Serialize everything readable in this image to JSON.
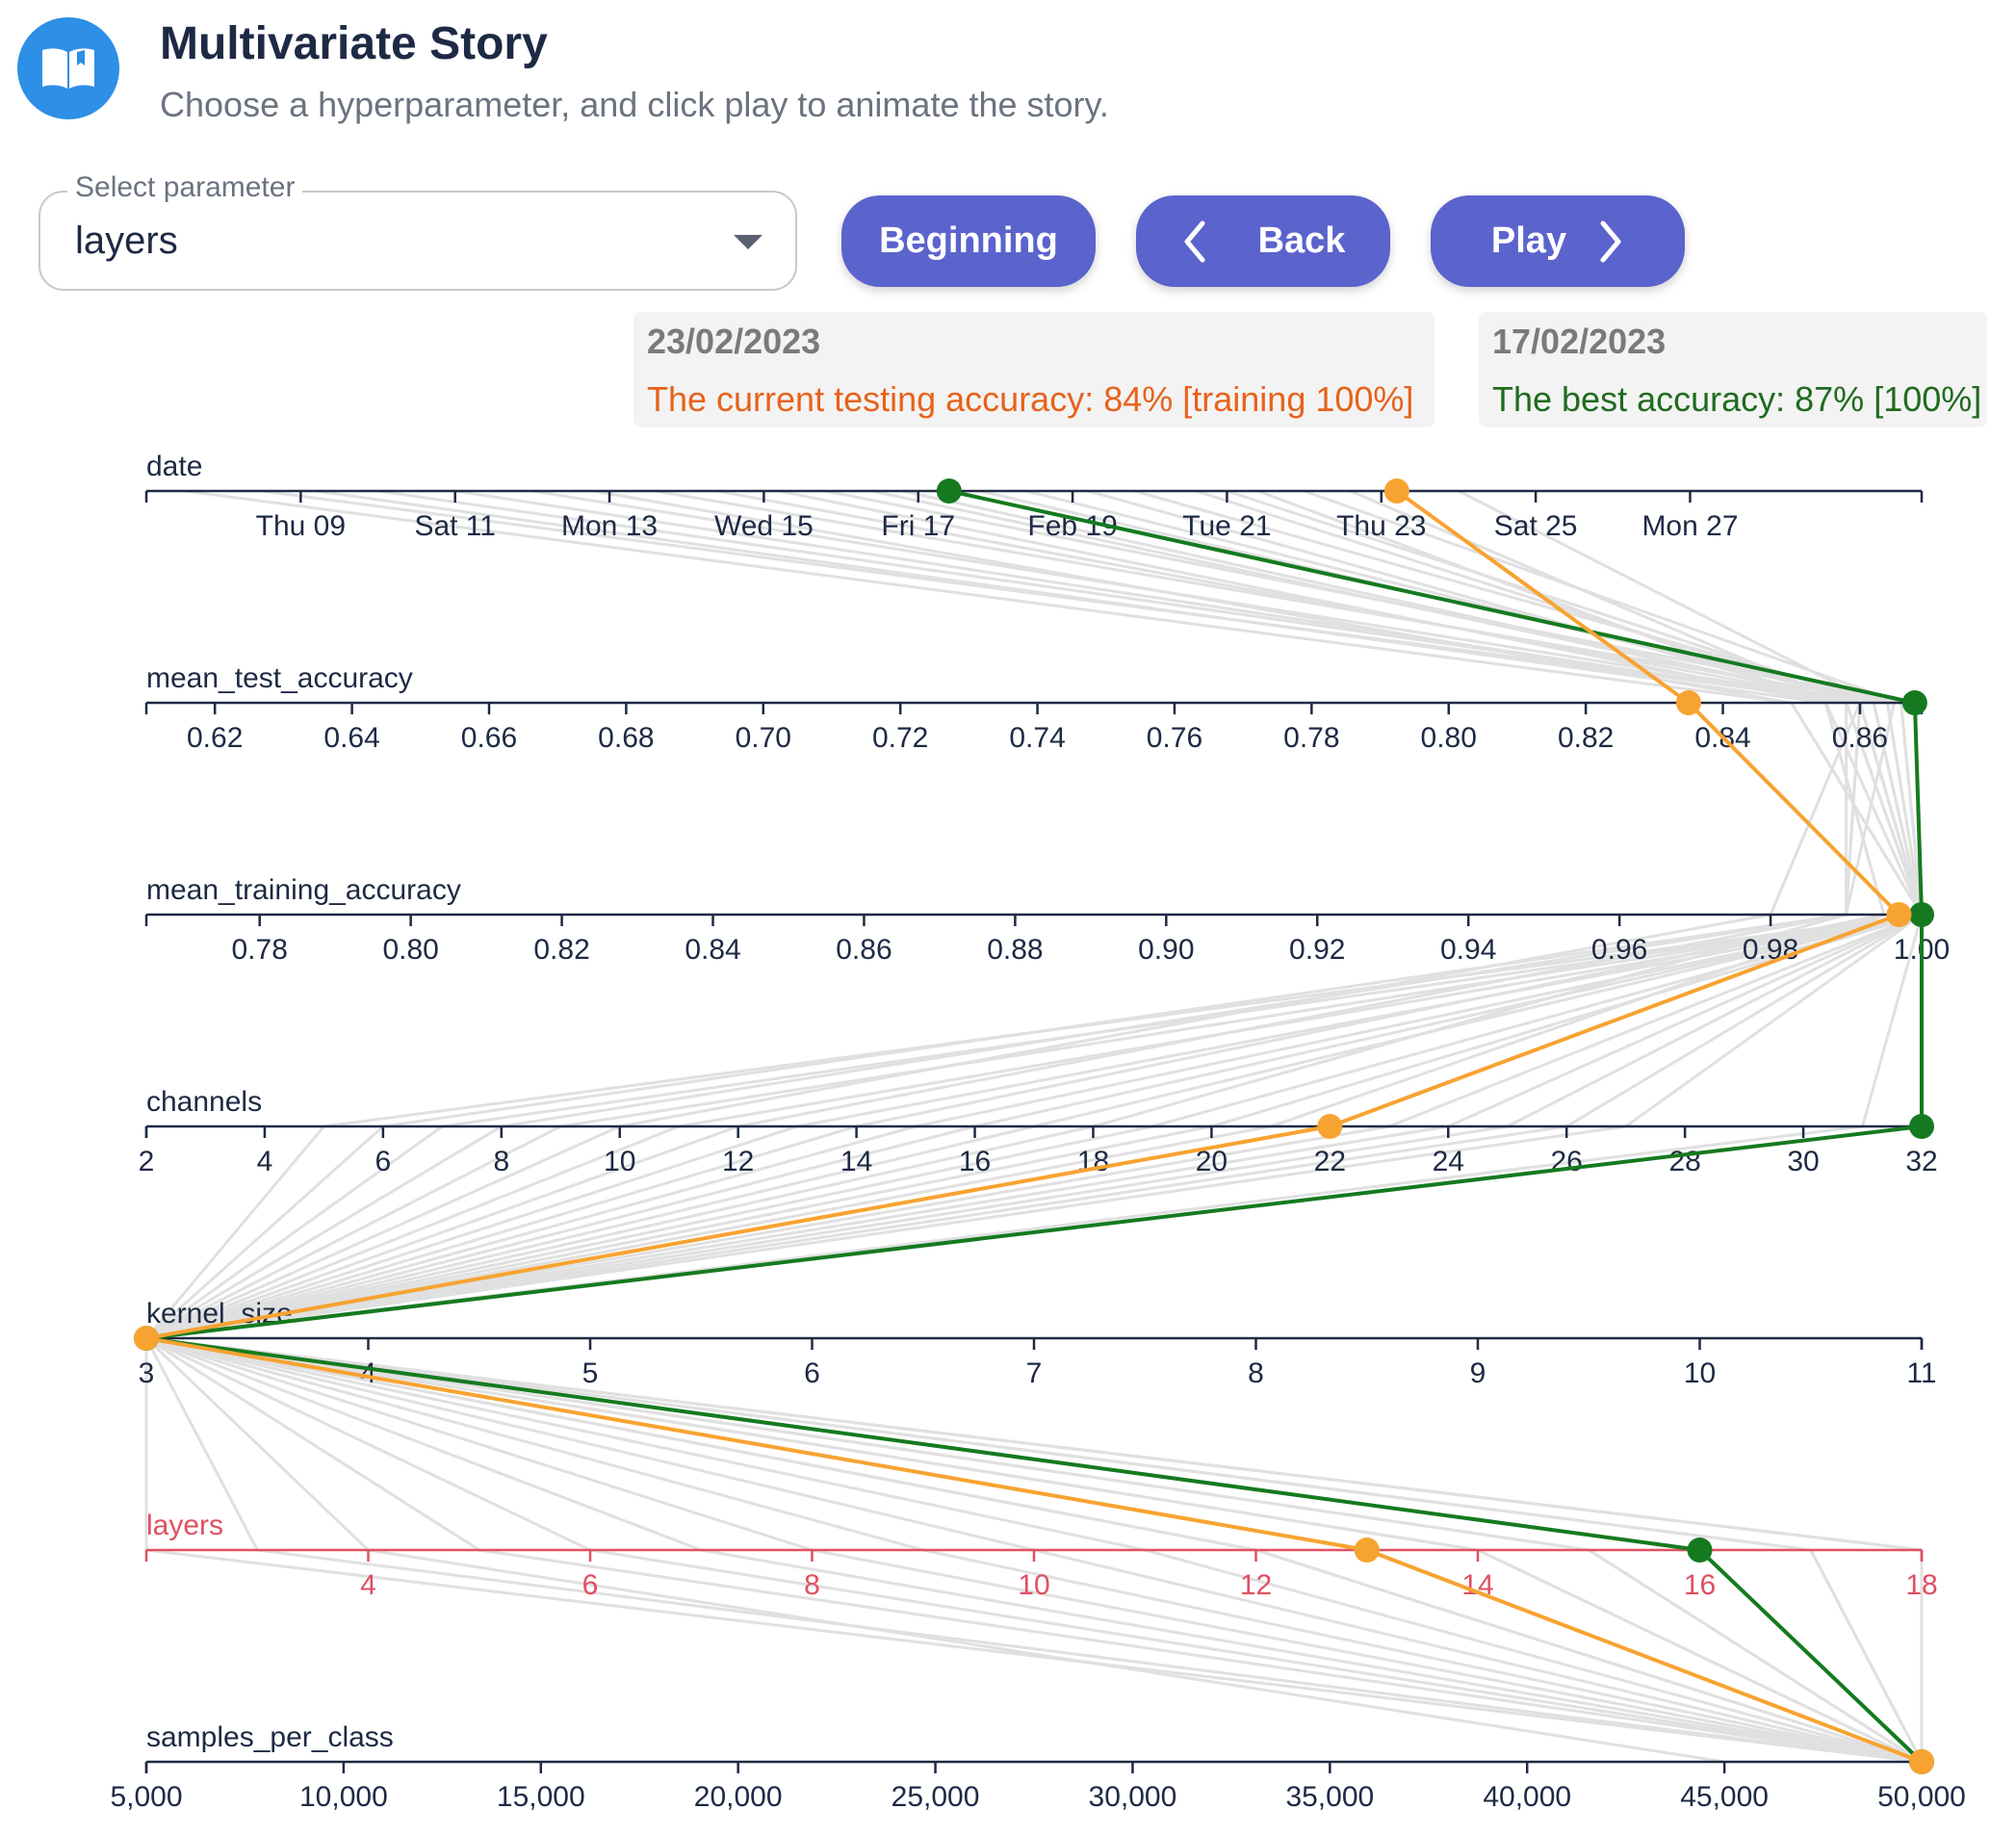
{
  "header": {
    "icon": "open-book-icon",
    "title": "Multivariate Story",
    "subtitle": "Choose a hyperparameter, and click play to animate the story."
  },
  "controls": {
    "select_label": "Select parameter",
    "select_value": "layers",
    "beginning_label": "Beginning",
    "back_label": "Back",
    "play_label": "Play"
  },
  "current_info": {
    "date": "23/02/2023",
    "message": "The current testing accuracy: 84% [training 100%]"
  },
  "best_info": {
    "date": "17/02/2023",
    "message": "The best accuracy: 87% [100%]"
  },
  "colors": {
    "current": "#f7a331",
    "best": "#157a1f",
    "background_lines": "#e0e0e0",
    "highlight_axis": "#e05061",
    "axis": "#1e2a44",
    "current_text": "#e8621a",
    "best_text": "#1f6b1f"
  },
  "chart_data": {
    "type": "parallel_coordinates",
    "highlighted_axis": "layers",
    "axes": [
      {
        "name": "date",
        "range": [
          7,
          30
        ],
        "ticks": [
          {
            "v": 9,
            "label": "Thu 09"
          },
          {
            "v": 11,
            "label": "Sat 11"
          },
          {
            "v": 13,
            "label": "Mon 13"
          },
          {
            "v": 15,
            "label": "Wed 15"
          },
          {
            "v": 17,
            "label": "Fri 17"
          },
          {
            "v": 19,
            "label": "Feb 19"
          },
          {
            "v": 21,
            "label": "Tue 21"
          },
          {
            "v": 23,
            "label": "Thu 23"
          },
          {
            "v": 25,
            "label": "Sat 25"
          },
          {
            "v": 27,
            "label": "Mon 27"
          }
        ]
      },
      {
        "name": "mean_test_accuracy",
        "range": [
          0.61,
          0.869
        ],
        "ticks": [
          {
            "v": 0.62,
            "label": "0.62"
          },
          {
            "v": 0.64,
            "label": "0.64"
          },
          {
            "v": 0.66,
            "label": "0.66"
          },
          {
            "v": 0.68,
            "label": "0.68"
          },
          {
            "v": 0.7,
            "label": "0.70"
          },
          {
            "v": 0.72,
            "label": "0.72"
          },
          {
            "v": 0.74,
            "label": "0.74"
          },
          {
            "v": 0.76,
            "label": "0.76"
          },
          {
            "v": 0.78,
            "label": "0.78"
          },
          {
            "v": 0.8,
            "label": "0.80"
          },
          {
            "v": 0.82,
            "label": "0.82"
          },
          {
            "v": 0.84,
            "label": "0.84"
          },
          {
            "v": 0.86,
            "label": "0.86"
          }
        ]
      },
      {
        "name": "mean_training_accuracy",
        "range": [
          0.765,
          1.0
        ],
        "ticks": [
          {
            "v": 0.78,
            "label": "0.78"
          },
          {
            "v": 0.8,
            "label": "0.80"
          },
          {
            "v": 0.82,
            "label": "0.82"
          },
          {
            "v": 0.84,
            "label": "0.84"
          },
          {
            "v": 0.86,
            "label": "0.86"
          },
          {
            "v": 0.88,
            "label": "0.88"
          },
          {
            "v": 0.9,
            "label": "0.90"
          },
          {
            "v": 0.92,
            "label": "0.92"
          },
          {
            "v": 0.94,
            "label": "0.94"
          },
          {
            "v": 0.96,
            "label": "0.96"
          },
          {
            "v": 0.98,
            "label": "0.98"
          },
          {
            "v": 1.0,
            "label": "1.00"
          }
        ]
      },
      {
        "name": "channels",
        "range": [
          2,
          32
        ],
        "ticks": [
          {
            "v": 2,
            "label": "2"
          },
          {
            "v": 4,
            "label": "4"
          },
          {
            "v": 6,
            "label": "6"
          },
          {
            "v": 8,
            "label": "8"
          },
          {
            "v": 10,
            "label": "10"
          },
          {
            "v": 12,
            "label": "12"
          },
          {
            "v": 14,
            "label": "14"
          },
          {
            "v": 16,
            "label": "16"
          },
          {
            "v": 18,
            "label": "18"
          },
          {
            "v": 20,
            "label": "20"
          },
          {
            "v": 22,
            "label": "22"
          },
          {
            "v": 24,
            "label": "24"
          },
          {
            "v": 26,
            "label": "26"
          },
          {
            "v": 28,
            "label": "28"
          },
          {
            "v": 30,
            "label": "30"
          },
          {
            "v": 32,
            "label": "32"
          }
        ]
      },
      {
        "name": "kernel_size",
        "range": [
          3,
          11
        ],
        "ticks": [
          {
            "v": 3,
            "label": "3"
          },
          {
            "v": 4,
            "label": "4"
          },
          {
            "v": 5,
            "label": "5"
          },
          {
            "v": 6,
            "label": "6"
          },
          {
            "v": 7,
            "label": "7"
          },
          {
            "v": 8,
            "label": "8"
          },
          {
            "v": 9,
            "label": "9"
          },
          {
            "v": 10,
            "label": "10"
          },
          {
            "v": 11,
            "label": "11"
          }
        ]
      },
      {
        "name": "layers",
        "range": [
          2,
          18
        ],
        "ticks": [
          {
            "v": 4,
            "label": "4"
          },
          {
            "v": 6,
            "label": "6"
          },
          {
            "v": 8,
            "label": "8"
          },
          {
            "v": 10,
            "label": "10"
          },
          {
            "v": 12,
            "label": "12"
          },
          {
            "v": 14,
            "label": "14"
          },
          {
            "v": 16,
            "label": "16"
          },
          {
            "v": 18,
            "label": "18"
          }
        ]
      },
      {
        "name": "samples_per_class",
        "range": [
          5000,
          50000
        ],
        "ticks": [
          {
            "v": 5000,
            "label": "5,000"
          },
          {
            "v": 10000,
            "label": "10,000"
          },
          {
            "v": 15000,
            "label": "15,000"
          },
          {
            "v": 20000,
            "label": "20,000"
          },
          {
            "v": 25000,
            "label": "25,000"
          },
          {
            "v": 30000,
            "label": "30,000"
          },
          {
            "v": 35000,
            "label": "35,000"
          },
          {
            "v": 40000,
            "label": "40,000"
          },
          {
            "v": 45000,
            "label": "45,000"
          },
          {
            "v": 50000,
            "label": "50,000"
          }
        ]
      }
    ],
    "highlighted_runs": [
      {
        "name": "current",
        "label": "23/02/2023",
        "values": [
          23.2,
          0.835,
          0.997,
          22,
          3,
          13,
          50000
        ]
      },
      {
        "name": "best",
        "label": "17/02/2023",
        "values": [
          17.4,
          0.868,
          1.0,
          32,
          3,
          16,
          50000
        ]
      }
    ],
    "background_runs": [
      [
        7.5,
        0.85,
        1.0,
        5,
        3,
        2,
        50000
      ],
      [
        8.5,
        0.86,
        0.99,
        6,
        3,
        3,
        50000
      ],
      [
        9.2,
        0.855,
        1.0,
        7,
        3,
        4,
        45000
      ],
      [
        10.0,
        0.86,
        0.99,
        8,
        3,
        5,
        50000
      ],
      [
        11.0,
        0.858,
        1.0,
        9,
        3,
        6,
        50000
      ],
      [
        12.0,
        0.86,
        0.98,
        10,
        3,
        7,
        50000
      ],
      [
        12.8,
        0.85,
        1.0,
        11,
        3,
        8,
        50000
      ],
      [
        13.6,
        0.865,
        0.99,
        12,
        3,
        9,
        50000
      ],
      [
        14.4,
        0.86,
        1.0,
        13,
        3,
        10,
        50000
      ],
      [
        15.2,
        0.855,
        0.995,
        14,
        3,
        11,
        50000
      ],
      [
        15.8,
        0.866,
        1.0,
        15,
        3,
        12,
        50000
      ],
      [
        16.4,
        0.86,
        1.0,
        16,
        3,
        14,
        50000
      ],
      [
        18.4,
        0.862,
        1.0,
        17,
        3,
        15,
        50000
      ],
      [
        19.2,
        0.858,
        0.99,
        18,
        3,
        17,
        50000
      ],
      [
        19.8,
        0.864,
        1.0,
        19,
        3,
        18,
        50000
      ],
      [
        20.6,
        0.86,
        1.0,
        20,
        3,
        16,
        50000
      ],
      [
        21.4,
        0.855,
        0.995,
        21,
        3,
        17,
        50000
      ],
      [
        22.0,
        0.866,
        1.0,
        23,
        3,
        18,
        50000
      ],
      [
        24.0,
        0.862,
        1.0,
        24,
        3,
        14,
        50000
      ],
      [
        16.8,
        0.86,
        1.0,
        25,
        3,
        13,
        50000
      ],
      [
        17.8,
        0.864,
        1.0,
        26,
        3,
        12,
        50000
      ],
      [
        22.6,
        0.858,
        1.0,
        27,
        3,
        15,
        50000
      ],
      [
        21.0,
        0.862,
        1.0,
        31,
        3,
        16,
        50000
      ]
    ]
  }
}
